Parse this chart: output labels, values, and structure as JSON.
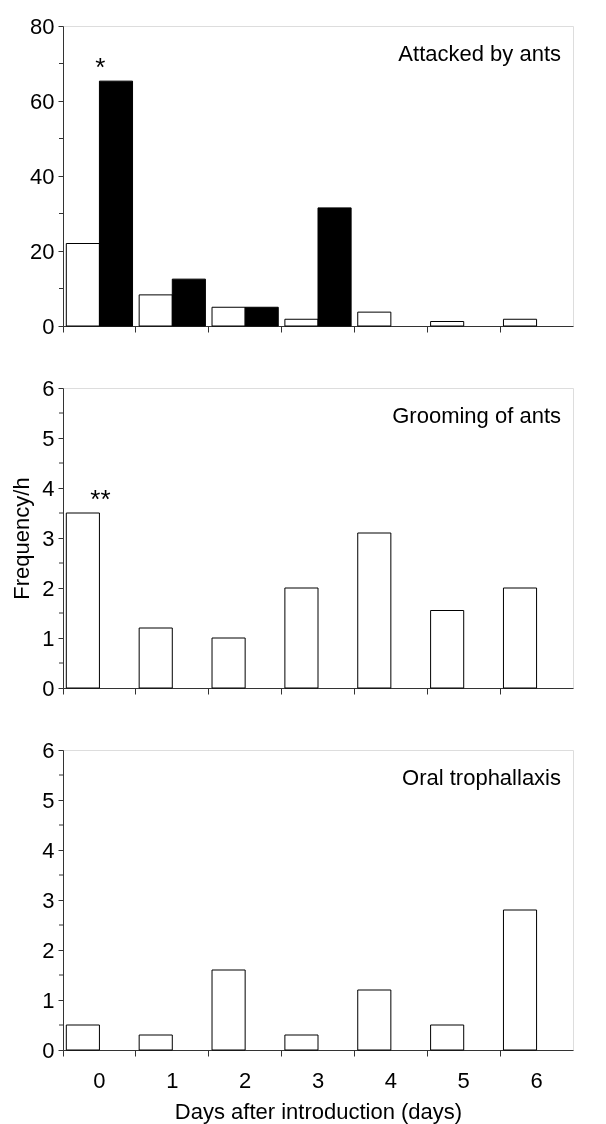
{
  "chart_data": [
    {
      "type": "bar",
      "title": "Attacked by ants",
      "categories": [
        "0",
        "1",
        "2",
        "3",
        "4",
        "5",
        "6"
      ],
      "series": [
        {
          "color": "#ffffff",
          "values": [
            22,
            8.3,
            5,
            1.8,
            3.7,
            1.2,
            1.8
          ]
        },
        {
          "color": "#000000",
          "values": [
            65.3,
            12.5,
            5,
            31.5,
            null,
            null,
            null
          ]
        }
      ],
      "ylim": [
        0,
        80
      ],
      "yticks": [
        0,
        {
          "value": 10,
          "label": null
        },
        20,
        {
          "value": 30,
          "label": null
        },
        40,
        {
          "value": 50,
          "label": null
        },
        60,
        {
          "value": 70,
          "label": null
        },
        80
      ],
      "annotations": [
        {
          "text": "*",
          "x": "0",
          "y": 65.3
        }
      ],
      "tick_labels": "y",
      "grid": false
    },
    {
      "type": "bar",
      "title": "Grooming of ants",
      "ylabel": "Frequency/h",
      "categories": [
        "0",
        "1",
        "2",
        "3",
        "4",
        "5",
        "6"
      ],
      "series": [
        {
          "color": "#ffffff",
          "values": [
            3.5,
            1.2,
            1.0,
            2.0,
            3.1,
            1.55,
            2.0
          ]
        }
      ],
      "ylim": [
        0,
        6
      ],
      "yticks": [
        0,
        {
          "value": 0.5,
          "label": null
        },
        1,
        {
          "value": 1.5,
          "label": null
        },
        2,
        {
          "value": 2.5,
          "label": null
        },
        3,
        {
          "value": 3.5,
          "label": null
        },
        4,
        {
          "value": 4.5,
          "label": null
        },
        5,
        {
          "value": 5.5,
          "label": null
        },
        6
      ],
      "annotations": [
        {
          "text": "**",
          "x": "0",
          "y": 3.5
        }
      ],
      "tick_labels": "y",
      "grid": false
    },
    {
      "type": "bar",
      "title": "Oral trophallaxis",
      "xlabel": "Days after introduction (days)",
      "categories": [
        "0",
        "1",
        "2",
        "3",
        "4",
        "5",
        "6"
      ],
      "series": [
        {
          "color": "#ffffff",
          "values": [
            0.5,
            0.3,
            1.6,
            0.3,
            1.2,
            0.5,
            2.8
          ]
        }
      ],
      "ylim": [
        0,
        6
      ],
      "yticks": [
        0,
        {
          "value": 0.5,
          "label": null
        },
        1,
        {
          "value": 1.5,
          "label": null
        },
        2,
        {
          "value": 2.5,
          "label": null
        },
        3,
        {
          "value": 3.5,
          "label": null
        },
        4,
        {
          "value": 4.5,
          "label": null
        },
        5,
        {
          "value": 5.5,
          "label": null
        },
        6
      ],
      "grid": false
    }
  ]
}
